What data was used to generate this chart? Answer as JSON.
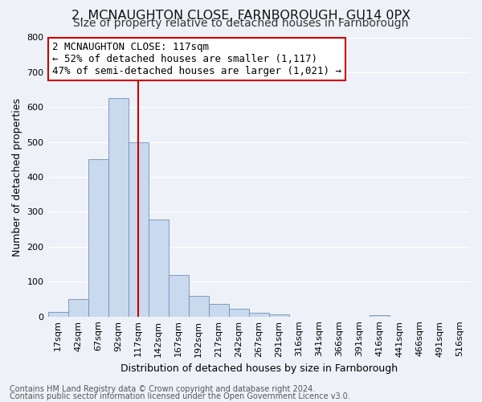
{
  "title": "2, MCNAUGHTON CLOSE, FARNBOROUGH, GU14 0PX",
  "subtitle": "Size of property relative to detached houses in Farnborough",
  "xlabel": "Distribution of detached houses by size in Farnborough",
  "ylabel": "Number of detached properties",
  "footnote1": "Contains HM Land Registry data © Crown copyright and database right 2024.",
  "footnote2": "Contains public sector information licensed under the Open Government Licence v3.0.",
  "bin_labels": [
    "17sqm",
    "42sqm",
    "67sqm",
    "92sqm",
    "117sqm",
    "142sqm",
    "167sqm",
    "192sqm",
    "217sqm",
    "242sqm",
    "267sqm",
    "291sqm",
    "316sqm",
    "341sqm",
    "366sqm",
    "391sqm",
    "416sqm",
    "441sqm",
    "466sqm",
    "491sqm",
    "516sqm"
  ],
  "bar_values": [
    12,
    50,
    450,
    625,
    500,
    278,
    118,
    60,
    37,
    23,
    10,
    7,
    0,
    0,
    0,
    0,
    5,
    0,
    0,
    0,
    0
  ],
  "bar_color": "#c9d9ee",
  "bar_edge_color": "#7090bb",
  "vline_x_index": 4,
  "vline_color": "#cc0000",
  "annotation_line1": "2 MCNAUGHTON CLOSE: 117sqm",
  "annotation_line2": "← 52% of detached houses are smaller (1,117)",
  "annotation_line3": "47% of semi-detached houses are larger (1,021) →",
  "annotation_box_color": "#ffffff",
  "annotation_box_edge": "#cc0000",
  "ylim": [
    0,
    800
  ],
  "yticks": [
    0,
    100,
    200,
    300,
    400,
    500,
    600,
    700,
    800
  ],
  "bg_color": "#eef2f8",
  "plot_bg_color": "#eef2f8",
  "grid_color": "#ffffff",
  "title_fontsize": 11.5,
  "subtitle_fontsize": 10,
  "axis_label_fontsize": 9,
  "tick_fontsize": 8,
  "annotation_fontsize": 9,
  "footnote_fontsize": 7
}
